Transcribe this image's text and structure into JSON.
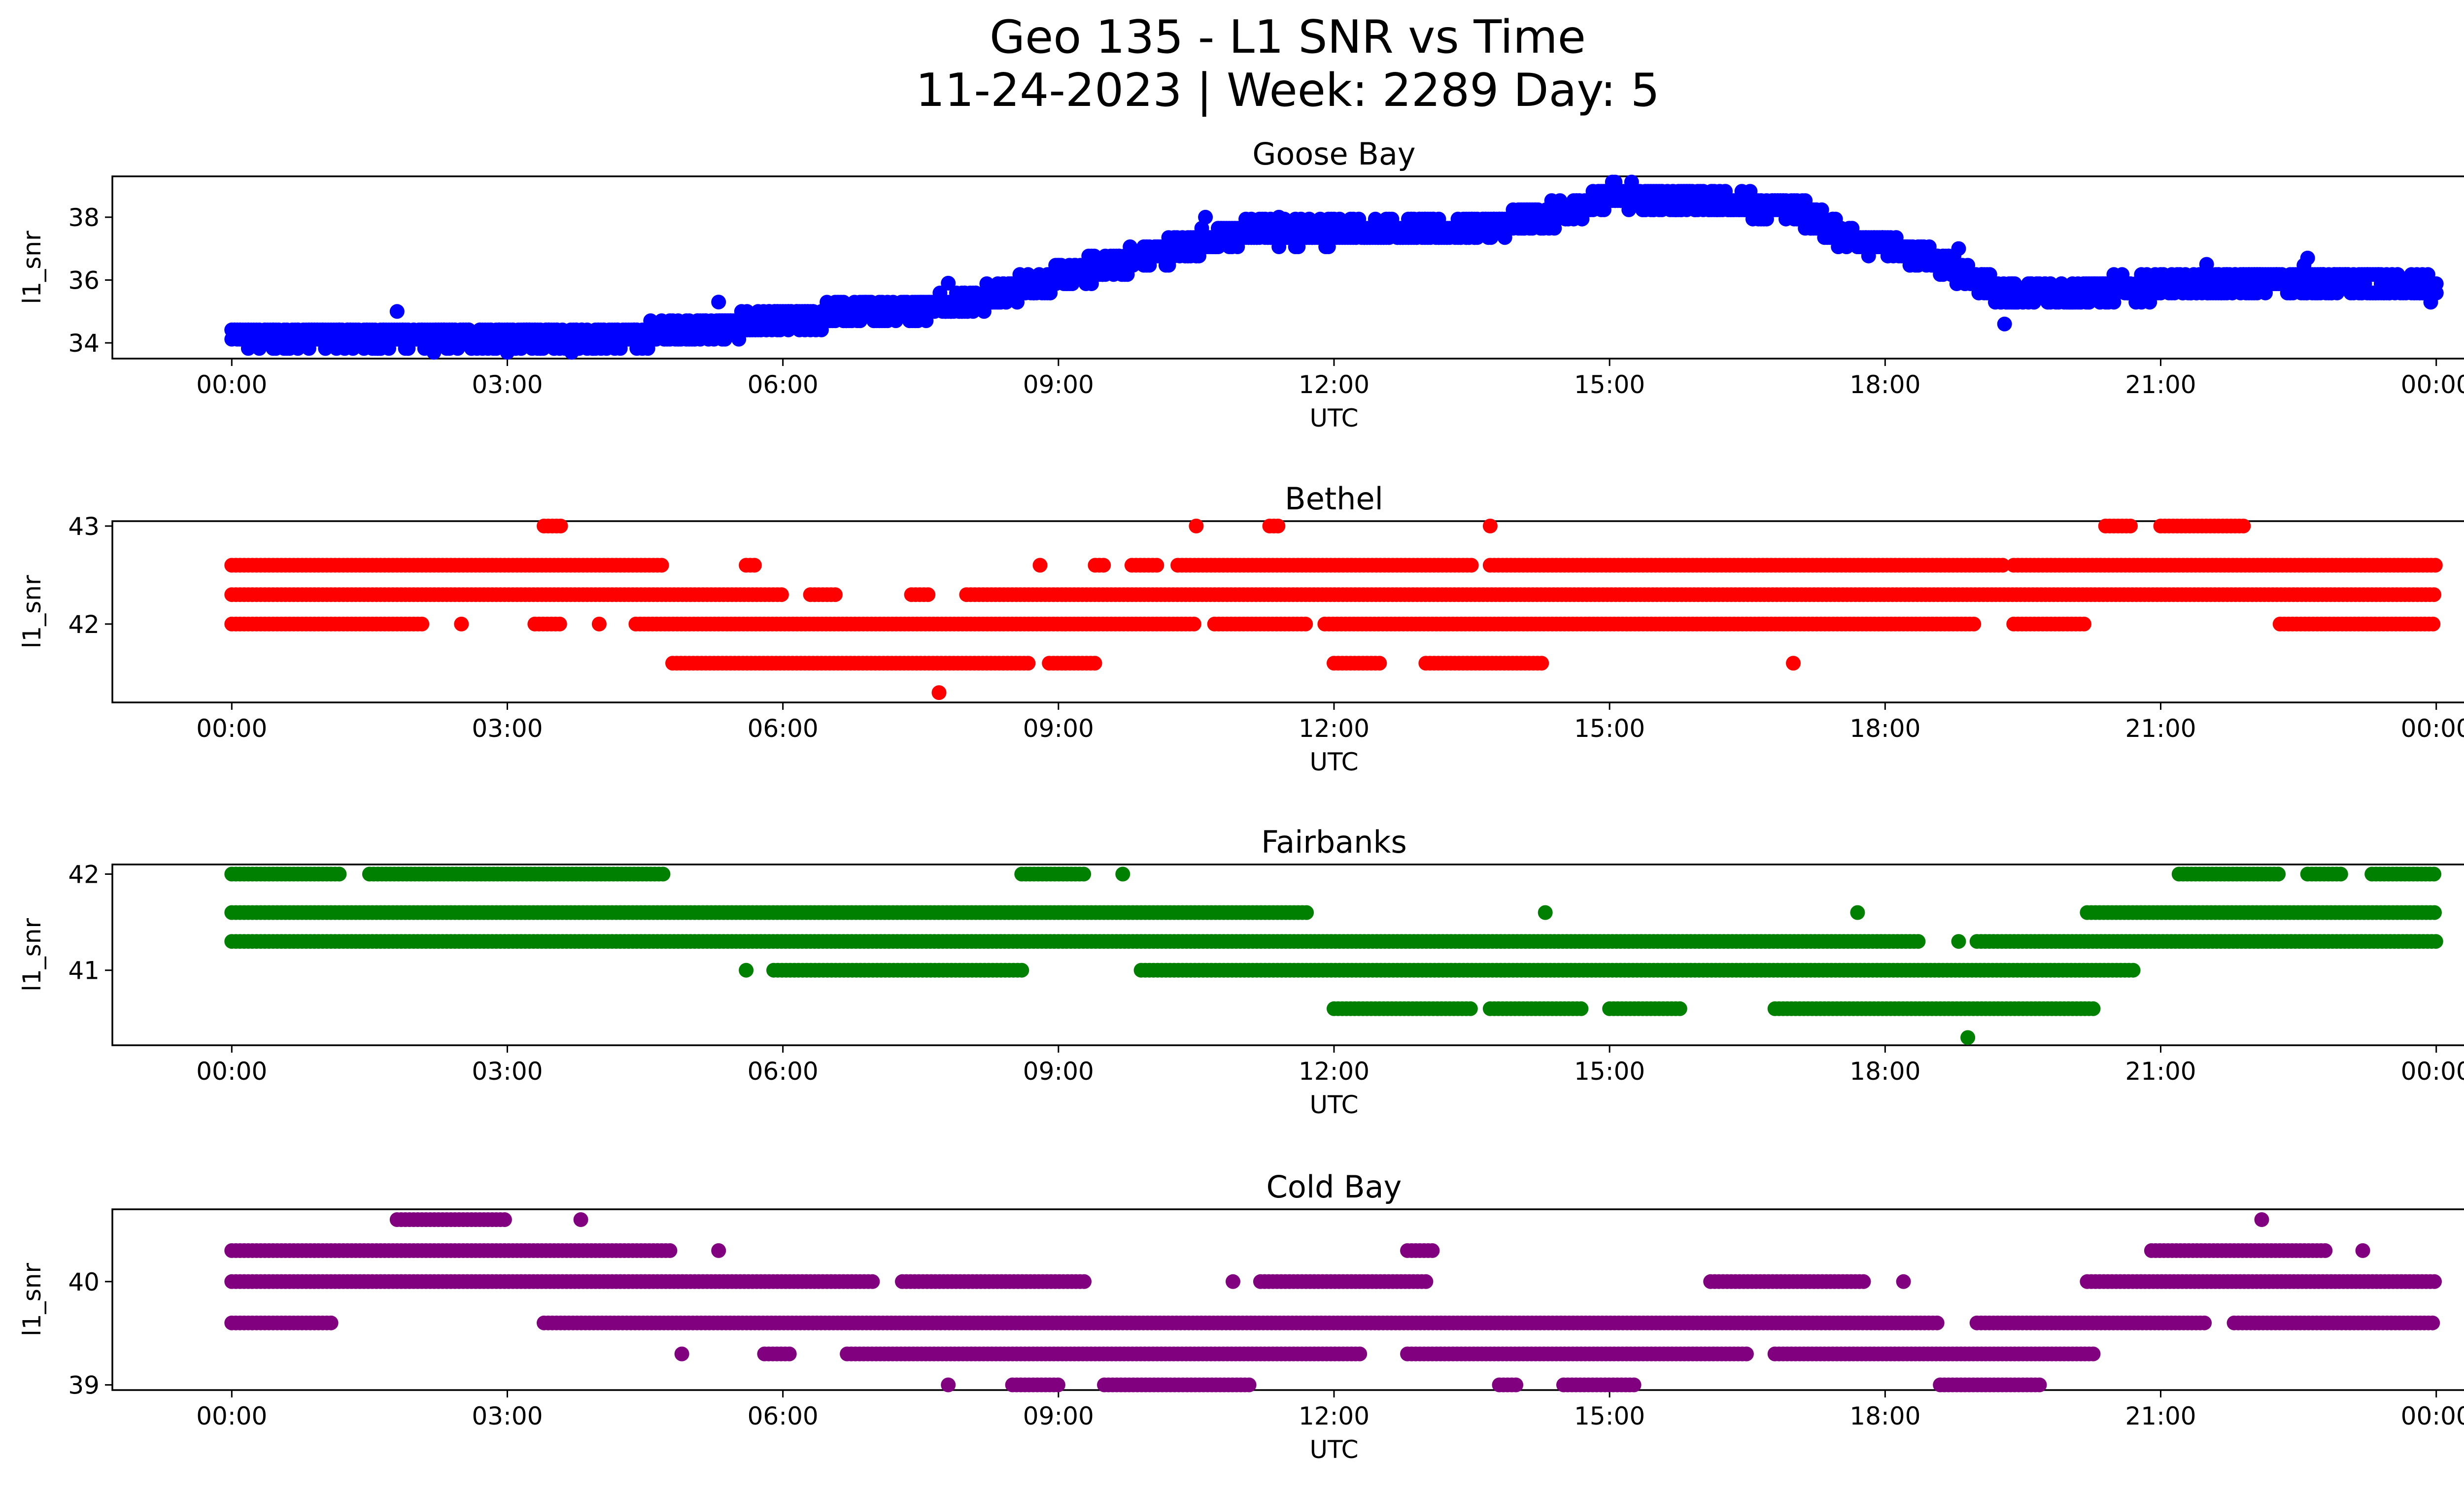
{
  "figure": {
    "title_line1": "Geo 135 - L1 SNR vs Time",
    "title_line2": "11-24-2023 | Week: 2289 Day: 5"
  },
  "chart_data": [
    {
      "type": "scatter",
      "title": "Goose Bay",
      "xlabel": "UTC",
      "ylabel": "l1_snr",
      "color": "#0000ff",
      "xlim": [
        -1.3,
        25.3
      ],
      "ylim": [
        33.5,
        39.3
      ],
      "xticks": [
        0,
        3,
        6,
        9,
        12,
        15,
        18,
        21,
        24
      ],
      "xticklabels": [
        "00:00",
        "03:00",
        "06:00",
        "09:00",
        "12:00",
        "15:00",
        "18:00",
        "21:00",
        "00:00"
      ],
      "yticks": [
        34,
        36,
        38
      ],
      "yticklabels": [
        "34",
        "36",
        "38"
      ],
      "series": [
        {
          "name": "Goose Bay",
          "trend": [
            [
              0,
              34.2
            ],
            [
              4.3,
              34.2
            ],
            [
              6,
              34.7
            ],
            [
              8,
              35.3
            ],
            [
              10,
              36.8
            ],
            [
              11,
              37.5
            ],
            [
              13.3,
              37.6
            ],
            [
              14.5,
              38.1
            ],
            [
              15,
              38.7
            ],
            [
              15.5,
              38.6
            ],
            [
              17,
              38.3
            ],
            [
              17.5,
              37.5
            ],
            [
              18.7,
              36.5
            ],
            [
              19.3,
              35.5
            ],
            [
              21,
              35.8
            ],
            [
              22.5,
              36
            ],
            [
              24,
              35.7
            ]
          ],
          "spread": 0.35,
          "outliers": [
            [
              1.8,
              35
            ],
            [
              2.2,
              33.7
            ],
            [
              3,
              33.7
            ],
            [
              3.7,
              33.7
            ],
            [
              5.3,
              35.3
            ],
            [
              7.8,
              35.9
            ],
            [
              10.6,
              38
            ],
            [
              11.4,
              38
            ],
            [
              18.8,
              37
            ],
            [
              19.3,
              34.6
            ],
            [
              21.5,
              36.5
            ],
            [
              22.6,
              36.7
            ]
          ]
        }
      ]
    },
    {
      "type": "scatter",
      "title": "Bethel",
      "xlabel": "UTC",
      "ylabel": "l1_snr",
      "color": "#ff0000",
      "xlim": [
        -1.3,
        25.3
      ],
      "ylim": [
        41.2,
        43.05
      ],
      "xticks": [
        0,
        3,
        6,
        9,
        12,
        15,
        18,
        21,
        24
      ],
      "xticklabels": [
        "00:00",
        "03:00",
        "06:00",
        "09:00",
        "12:00",
        "15:00",
        "18:00",
        "21:00",
        "00:00"
      ],
      "yticks": [
        42,
        43
      ],
      "yticklabels": [
        "42",
        "43"
      ],
      "series": [
        {
          "name": "Bethel",
          "levels": [
            {
              "y": 43.0,
              "segments": [
                [
                  3.4,
                  3.6
                ],
                [
                  10.5,
                  10.5
                ],
                [
                  11.3,
                  11.4
                ],
                [
                  13.7,
                  13.7
                ],
                [
                  20.4,
                  20.7
                ],
                [
                  21,
                  21.9
                ]
              ]
            },
            {
              "y": 42.6,
              "segments": [
                [
                  0,
                  4.7
                ],
                [
                  5.6,
                  5.7
                ],
                [
                  8.8,
                  8.8
                ],
                [
                  9.4,
                  9.5
                ],
                [
                  9.8,
                  10.1
                ],
                [
                  10.3,
                  13.5
                ],
                [
                  13.7,
                  19.3
                ],
                [
                  19.4,
                  24
                ]
              ]
            },
            {
              "y": 42.3,
              "segments": [
                [
                  0,
                  6
                ],
                [
                  6.3,
                  6.6
                ],
                [
                  7.4,
                  7.6
                ],
                [
                  8,
                  24
                ]
              ]
            },
            {
              "y": 42.0,
              "segments": [
                [
                  0,
                  2.1
                ],
                [
                  2.5,
                  2.5
                ],
                [
                  3.3,
                  3.6
                ],
                [
                  4,
                  4
                ],
                [
                  4.4,
                  10.5
                ],
                [
                  10.7,
                  11.7
                ],
                [
                  11.9,
                  19
                ],
                [
                  19.4,
                  20.2
                ],
                [
                  22.3,
                  24
                ]
              ]
            },
            {
              "y": 41.6,
              "segments": [
                [
                  4.8,
                  8.7
                ],
                [
                  8.9,
                  9.4
                ],
                [
                  12,
                  12.5
                ],
                [
                  13,
                  14.3
                ],
                [
                  17,
                  17
                ]
              ]
            },
            {
              "y": 41.3,
              "segments": [
                [
                  7.7,
                  7.7
                ]
              ]
            }
          ]
        }
      ]
    },
    {
      "type": "scatter",
      "title": "Fairbanks",
      "xlabel": "UTC",
      "ylabel": "l1_snr",
      "color": "#008000",
      "xlim": [
        -1.3,
        25.3
      ],
      "ylim": [
        40.22,
        42.1
      ],
      "xticks": [
        0,
        3,
        6,
        9,
        12,
        15,
        18,
        21,
        24
      ],
      "xticklabels": [
        "00:00",
        "03:00",
        "06:00",
        "09:00",
        "12:00",
        "15:00",
        "18:00",
        "21:00",
        "00:00"
      ],
      "yticks": [
        41,
        42
      ],
      "yticklabels": [
        "41",
        "42"
      ],
      "series": [
        {
          "name": "Fairbanks",
          "levels": [
            {
              "y": 42.0,
              "segments": [
                [
                  0,
                  1.2
                ],
                [
                  1.5,
                  4.7
                ],
                [
                  8.6,
                  9.3
                ],
                [
                  9.7,
                  9.7
                ],
                [
                  21.2,
                  22.3
                ],
                [
                  22.6,
                  23
                ],
                [
                  23.3,
                  24
                ]
              ]
            },
            {
              "y": 41.6,
              "segments": [
                [
                  0,
                  11.7
                ],
                [
                  14.3,
                  14.3
                ],
                [
                  17.7,
                  17.7
                ],
                [
                  20.2,
                  24
                ]
              ]
            },
            {
              "y": 41.3,
              "segments": [
                [
                  0,
                  18.4
                ],
                [
                  18.8,
                  18.8
                ],
                [
                  19,
                  24
                ]
              ]
            },
            {
              "y": 41.0,
              "segments": [
                [
                  5.6,
                  5.6
                ],
                [
                  5.9,
                  8.6
                ],
                [
                  9.9,
                  20.7
                ]
              ]
            },
            {
              "y": 40.6,
              "segments": [
                [
                  12,
                  13.5
                ],
                [
                  13.7,
                  14.7
                ],
                [
                  15,
                  15.8
                ],
                [
                  16.8,
                  20.3
                ]
              ]
            },
            {
              "y": 40.3,
              "segments": [
                [
                  18.9,
                  18.9
                ]
              ]
            }
          ]
        }
      ]
    },
    {
      "type": "scatter",
      "title": "Cold Bay",
      "xlabel": "UTC",
      "ylabel": "l1_snr",
      "color": "#800080",
      "xlim": [
        -1.3,
        25.3
      ],
      "ylim": [
        38.95,
        40.7
      ],
      "xticks": [
        0,
        3,
        6,
        9,
        12,
        15,
        18,
        21,
        24
      ],
      "xticklabels": [
        "00:00",
        "03:00",
        "06:00",
        "09:00",
        "12:00",
        "15:00",
        "18:00",
        "21:00",
        "00:00"
      ],
      "yticks": [
        39,
        40
      ],
      "yticklabels": [
        "39",
        "40"
      ],
      "series": [
        {
          "name": "Cold Bay",
          "levels": [
            {
              "y": 40.6,
              "segments": [
                [
                  1.8,
                  3
                ],
                [
                  3.8,
                  3.8
                ],
                [
                  22.1,
                  22.1
                ]
              ]
            },
            {
              "y": 40.3,
              "segments": [
                [
                  0,
                  4.8
                ],
                [
                  5.3,
                  5.3
                ],
                [
                  12.8,
                  13.1
                ],
                [
                  20.9,
                  22.8
                ],
                [
                  23.2,
                  23.2
                ]
              ]
            },
            {
              "y": 40.0,
              "segments": [
                [
                  0,
                  7
                ],
                [
                  7.3,
                  9.3
                ],
                [
                  10.9,
                  10.9
                ],
                [
                  11.2,
                  13
                ],
                [
                  16.1,
                  17.8
                ],
                [
                  18.2,
                  18.2
                ],
                [
                  20.2,
                  24
                ]
              ]
            },
            {
              "y": 39.6,
              "segments": [
                [
                  0,
                  1.1
                ],
                [
                  3.4,
                  18.6
                ],
                [
                  19,
                  21.5
                ],
                [
                  21.8,
                  24
                ]
              ]
            },
            {
              "y": 39.3,
              "segments": [
                [
                  4.9,
                  4.9
                ],
                [
                  5.8,
                  6.1
                ],
                [
                  6.7,
                  12.3
                ],
                [
                  12.8,
                  16.5
                ],
                [
                  16.8,
                  20.3
                ]
              ]
            },
            {
              "y": 39.0,
              "segments": [
                [
                  7.8,
                  7.8
                ],
                [
                  8.5,
                  9
                ],
                [
                  9.5,
                  11.1
                ],
                [
                  13.8,
                  14
                ],
                [
                  14.5,
                  15.3
                ],
                [
                  18.6,
                  19.7
                ]
              ]
            }
          ]
        }
      ]
    }
  ]
}
